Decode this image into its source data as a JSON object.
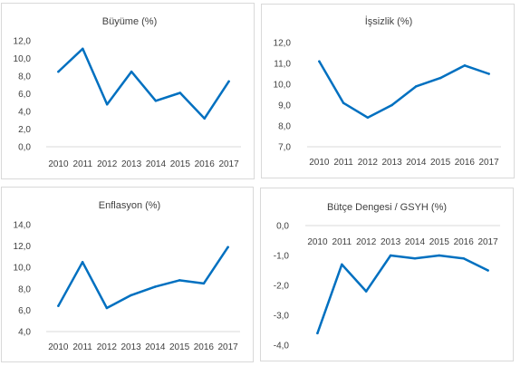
{
  "chart_data": [
    {
      "type": "line",
      "title": "Büyüme (%)",
      "x": [
        "2010",
        "2011",
        "2012",
        "2013",
        "2014",
        "2015",
        "2016",
        "2017"
      ],
      "values": [
        8.5,
        11.1,
        4.8,
        8.5,
        5.2,
        6.1,
        3.2,
        7.4
      ],
      "ylim": [
        0,
        12
      ],
      "yticks": [
        "0,0",
        "2,0",
        "4,0",
        "6,0",
        "8,0",
        "10,0",
        "12,0"
      ],
      "line_color": "#0070c0",
      "grid": false
    },
    {
      "type": "line",
      "title": "İşsizlik (%)",
      "x": [
        "2010",
        "2011",
        "2012",
        "2013",
        "2014",
        "2015",
        "2016",
        "2017"
      ],
      "values": [
        11.1,
        9.1,
        8.4,
        9.0,
        9.9,
        10.3,
        10.9,
        10.5
      ],
      "ylim": [
        7,
        12
      ],
      "yticks": [
        "7,0",
        "8,0",
        "9,0",
        "10,0",
        "11,0",
        "12,0"
      ],
      "line_color": "#0070c0",
      "grid": false
    },
    {
      "type": "line",
      "title": "Enflasyon (%)",
      "x": [
        "2010",
        "2011",
        "2012",
        "2013",
        "2014",
        "2015",
        "2016",
        "2017"
      ],
      "values": [
        6.4,
        10.5,
        6.2,
        7.4,
        8.2,
        8.8,
        8.5,
        11.9
      ],
      "ylim": [
        4,
        14
      ],
      "yticks": [
        "4,0",
        "6,0",
        "8,0",
        "10,0",
        "12,0",
        "14,0"
      ],
      "line_color": "#0070c0",
      "grid": false
    },
    {
      "type": "line",
      "title": "Bütçe Dengesi / GSYH (%)",
      "x": [
        "2010",
        "2011",
        "2012",
        "2013",
        "2014",
        "2015",
        "2016",
        "2017"
      ],
      "values": [
        -3.6,
        -1.3,
        -2.2,
        -1.0,
        -1.1,
        -1.0,
        -1.1,
        -1.5
      ],
      "ylim": [
        -4,
        0
      ],
      "yticks": [
        "-4,0",
        "-3,0",
        "-2,0",
        "-1,0",
        "0,0"
      ],
      "line_color": "#0070c0",
      "grid": false,
      "x_axis_position": "top"
    }
  ]
}
